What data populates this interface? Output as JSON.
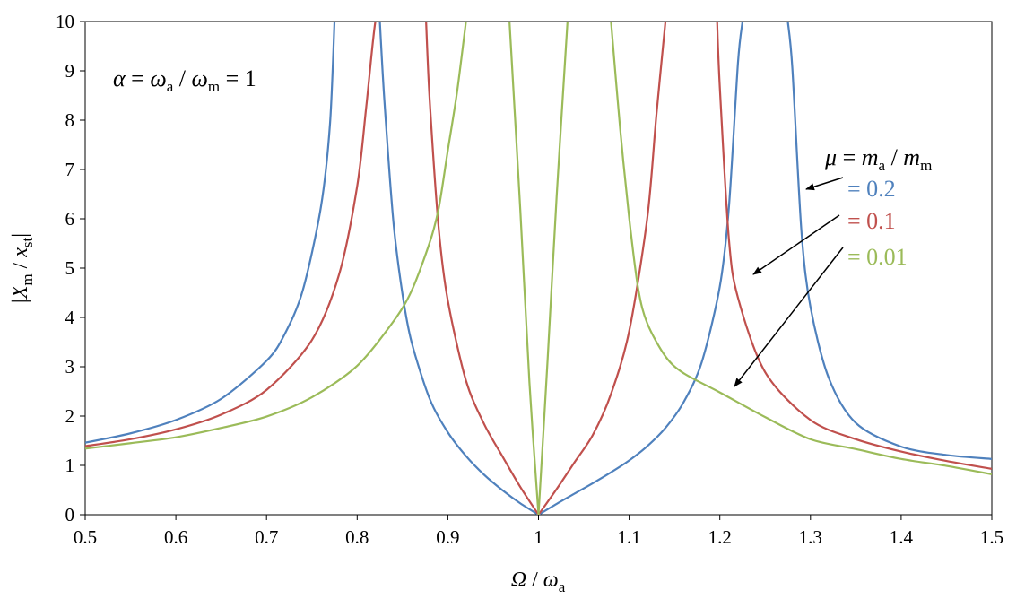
{
  "chart_data": {
    "type": "line",
    "title": "",
    "xlabel": "Ω / ωa",
    "ylabel": "|Xm / xst|",
    "xlim": [
      0.5,
      1.5
    ],
    "ylim": [
      0,
      10
    ],
    "x_ticks": [
      "0.5",
      "0.6",
      "0.7",
      "0.8",
      "0.9",
      "1",
      "1.1",
      "1.2",
      "1.3",
      "1.4",
      "1.5"
    ],
    "y_ticks": [
      "0",
      "1",
      "2",
      "3",
      "4",
      "5",
      "6",
      "7",
      "8",
      "9",
      "10"
    ],
    "grid": false,
    "annotation": "α = ωa / ωm = 1",
    "legend_header": "μ = ma / mm",
    "series": [
      {
        "name": "= 0.2",
        "color": "#4f81bd",
        "x": [
          0.5,
          0.55,
          0.6,
          0.65,
          0.7,
          0.72,
          0.74,
          0.76,
          0.77,
          0.775,
          0.825,
          0.83,
          0.84,
          0.85,
          0.86,
          0.88,
          0.9,
          0.92,
          0.94,
          0.96,
          0.98,
          1.0,
          1.02,
          1.04,
          1.06,
          1.08,
          1.1,
          1.12,
          1.14,
          1.16,
          1.18,
          1.2,
          1.21,
          1.22,
          1.225,
          1.275,
          1.28,
          1.29,
          1.3,
          1.32,
          1.35,
          1.4,
          1.45,
          1.5
        ],
        "values": [
          1.46,
          1.65,
          1.92,
          2.35,
          3.12,
          3.66,
          4.55,
          6.24,
          7.92,
          10.0,
          10.0,
          8.4,
          5.93,
          4.47,
          3.5,
          2.35,
          1.67,
          1.19,
          0.81,
          0.5,
          0.23,
          0.0,
          0.22,
          0.43,
          0.64,
          0.86,
          1.1,
          1.39,
          1.76,
          2.28,
          3.09,
          4.63,
          6.23,
          9.16,
          10.0,
          10.0,
          9.05,
          5.75,
          4.21,
          2.78,
          1.86,
          1.38,
          1.21,
          1.13
        ]
      },
      {
        "name": "= 0.1",
        "color": "#c0504d",
        "x": [
          0.5,
          0.55,
          0.6,
          0.65,
          0.7,
          0.75,
          0.78,
          0.8,
          0.81,
          0.82,
          0.826,
          0.876,
          0.88,
          0.89,
          0.9,
          0.92,
          0.94,
          0.96,
          0.98,
          1.0,
          1.02,
          1.04,
          1.06,
          1.08,
          1.1,
          1.12,
          1.13,
          1.14,
          1.147,
          1.197,
          1.2,
          1.21,
          1.22,
          1.25,
          1.3,
          1.35,
          1.4,
          1.45,
          1.5
        ],
        "values": [
          1.39,
          1.53,
          1.73,
          2.03,
          2.53,
          3.54,
          4.87,
          6.66,
          8.27,
          9.99,
          10.0,
          10.0,
          8.4,
          5.79,
          4.34,
          2.72,
          1.84,
          1.19,
          0.56,
          0.0,
          0.52,
          1.07,
          1.62,
          2.45,
          3.72,
          6.02,
          8.1,
          10.0,
          10.0,
          10.0,
          8.66,
          5.59,
          4.4,
          2.89,
          1.92,
          1.53,
          1.28,
          1.09,
          0.93
        ]
      },
      {
        "name": "= 0.01",
        "color": "#9bbb59",
        "x": [
          0.5,
          0.55,
          0.6,
          0.65,
          0.7,
          0.75,
          0.8,
          0.84,
          0.86,
          0.88,
          0.89,
          0.9,
          0.91,
          0.92,
          0.968,
          0.98,
          0.99,
          1.0,
          1.01,
          1.02,
          1.032,
          1.08,
          1.09,
          1.1,
          1.11,
          1.12,
          1.14,
          1.16,
          1.2,
          1.25,
          1.3,
          1.35,
          1.4,
          1.45,
          1.5
        ],
        "values": [
          1.34,
          1.45,
          1.57,
          1.76,
          1.99,
          2.38,
          3.02,
          3.92,
          4.54,
          5.52,
          6.22,
          7.39,
          8.55,
          10.0,
          10.0,
          6.15,
          2.68,
          0.0,
          3.13,
          6.45,
          10.0,
          10.0,
          7.84,
          6.02,
          4.58,
          3.88,
          3.21,
          2.87,
          2.48,
          1.98,
          1.53,
          1.33,
          1.13,
          0.99,
          0.82
        ]
      }
    ]
  }
}
